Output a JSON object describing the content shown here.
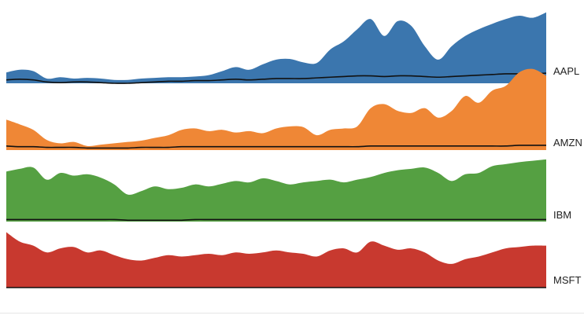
{
  "chart_data": {
    "type": "area",
    "title": "",
    "xlabel": "",
    "ylabel": "",
    "x": [
      0,
      1,
      2,
      3,
      4,
      5,
      6,
      7,
      8,
      9,
      10,
      11,
      12,
      13,
      14,
      15,
      16,
      17,
      18,
      19,
      20,
      21,
      22,
      23,
      24,
      25,
      26,
      27,
      28,
      29,
      30,
      31,
      32,
      33,
      34,
      35,
      36,
      37,
      38,
      39,
      40
    ],
    "series": [
      {
        "name": "AAPL",
        "color": "#3b76ae",
        "values": [
          0.16,
          0.2,
          0.18,
          0.07,
          0.09,
          0.07,
          0.08,
          0.07,
          0.05,
          0.05,
          0.07,
          0.08,
          0.09,
          0.09,
          0.1,
          0.12,
          0.18,
          0.24,
          0.2,
          0.28,
          0.35,
          0.36,
          0.31,
          0.3,
          0.5,
          0.62,
          0.8,
          0.95,
          0.7,
          0.92,
          0.85,
          0.55,
          0.35,
          0.55,
          0.7,
          0.8,
          0.88,
          0.95,
          1.0,
          0.97,
          1.05
        ],
        "trend": [
          0.05,
          0.06,
          0.05,
          0.02,
          0.01,
          0.02,
          0.02,
          0.01,
          0.0,
          0.0,
          0.01,
          0.02,
          0.03,
          0.03,
          0.04,
          0.04,
          0.05,
          0.06,
          0.05,
          0.06,
          0.07,
          0.07,
          0.07,
          0.08,
          0.09,
          0.1,
          0.11,
          0.11,
          0.1,
          0.11,
          0.11,
          0.1,
          0.09,
          0.1,
          0.11,
          0.12,
          0.13,
          0.14,
          0.14,
          0.14,
          0.15
        ]
      },
      {
        "name": "AMZN",
        "color": "#ef8736",
        "values": [
          0.45,
          0.38,
          0.3,
          0.15,
          0.1,
          0.12,
          0.06,
          0.08,
          0.1,
          0.12,
          0.14,
          0.18,
          0.22,
          0.3,
          0.32,
          0.28,
          0.3,
          0.26,
          0.28,
          0.25,
          0.32,
          0.35,
          0.34,
          0.22,
          0.3,
          0.32,
          0.35,
          0.62,
          0.68,
          0.58,
          0.55,
          0.62,
          0.48,
          0.58,
          0.8,
          0.7,
          0.88,
          0.95,
          1.15,
          1.2,
          1.1
        ],
        "trend": [
          0.06,
          0.05,
          0.05,
          0.04,
          0.04,
          0.04,
          0.03,
          0.03,
          0.03,
          0.03,
          0.04,
          0.04,
          0.04,
          0.05,
          0.05,
          0.05,
          0.05,
          0.05,
          0.05,
          0.05,
          0.05,
          0.05,
          0.05,
          0.05,
          0.05,
          0.05,
          0.05,
          0.06,
          0.06,
          0.06,
          0.06,
          0.06,
          0.06,
          0.06,
          0.06,
          0.06,
          0.06,
          0.06,
          0.07,
          0.07,
          0.07
        ]
      },
      {
        "name": "IBM",
        "color": "#55a042",
        "values": [
          0.74,
          0.78,
          0.8,
          0.62,
          0.72,
          0.68,
          0.7,
          0.65,
          0.55,
          0.4,
          0.45,
          0.52,
          0.48,
          0.5,
          0.55,
          0.52,
          0.56,
          0.6,
          0.58,
          0.64,
          0.6,
          0.55,
          0.58,
          0.6,
          0.62,
          0.58,
          0.62,
          0.66,
          0.72,
          0.76,
          0.78,
          0.8,
          0.72,
          0.6,
          0.7,
          0.72,
          0.82,
          0.85,
          0.88,
          0.9,
          0.92
        ],
        "trend": [
          0.03,
          0.03,
          0.03,
          0.03,
          0.03,
          0.03,
          0.03,
          0.03,
          0.03,
          0.02,
          0.02,
          0.02,
          0.02,
          0.02,
          0.03,
          0.03,
          0.03,
          0.03,
          0.03,
          0.03,
          0.03,
          0.03,
          0.03,
          0.03,
          0.03,
          0.03,
          0.03,
          0.03,
          0.03,
          0.03,
          0.03,
          0.03,
          0.03,
          0.03,
          0.03,
          0.03,
          0.03,
          0.03,
          0.03,
          0.03,
          0.03
        ]
      },
      {
        "name": "MSFT",
        "color": "#c8392f",
        "values": [
          0.82,
          0.68,
          0.62,
          0.52,
          0.58,
          0.6,
          0.52,
          0.55,
          0.48,
          0.42,
          0.4,
          0.44,
          0.48,
          0.46,
          0.48,
          0.5,
          0.48,
          0.52,
          0.5,
          0.52,
          0.55,
          0.52,
          0.5,
          0.46,
          0.55,
          0.58,
          0.52,
          0.68,
          0.62,
          0.56,
          0.58,
          0.52,
          0.4,
          0.35,
          0.42,
          0.46,
          0.52,
          0.58,
          0.6,
          0.62,
          0.62
        ],
        "trend": [
          0,
          0,
          0,
          0,
          0,
          0,
          0,
          0,
          0,
          0,
          0,
          0,
          0,
          0,
          0,
          0,
          0,
          0,
          0,
          0,
          0,
          0,
          0,
          0,
          0,
          0,
          0,
          0,
          0,
          0,
          0,
          0,
          0,
          0,
          0,
          0,
          0,
          0,
          0,
          0,
          0
        ]
      }
    ],
    "grid": false,
    "legend": "right-of-each-band"
  }
}
